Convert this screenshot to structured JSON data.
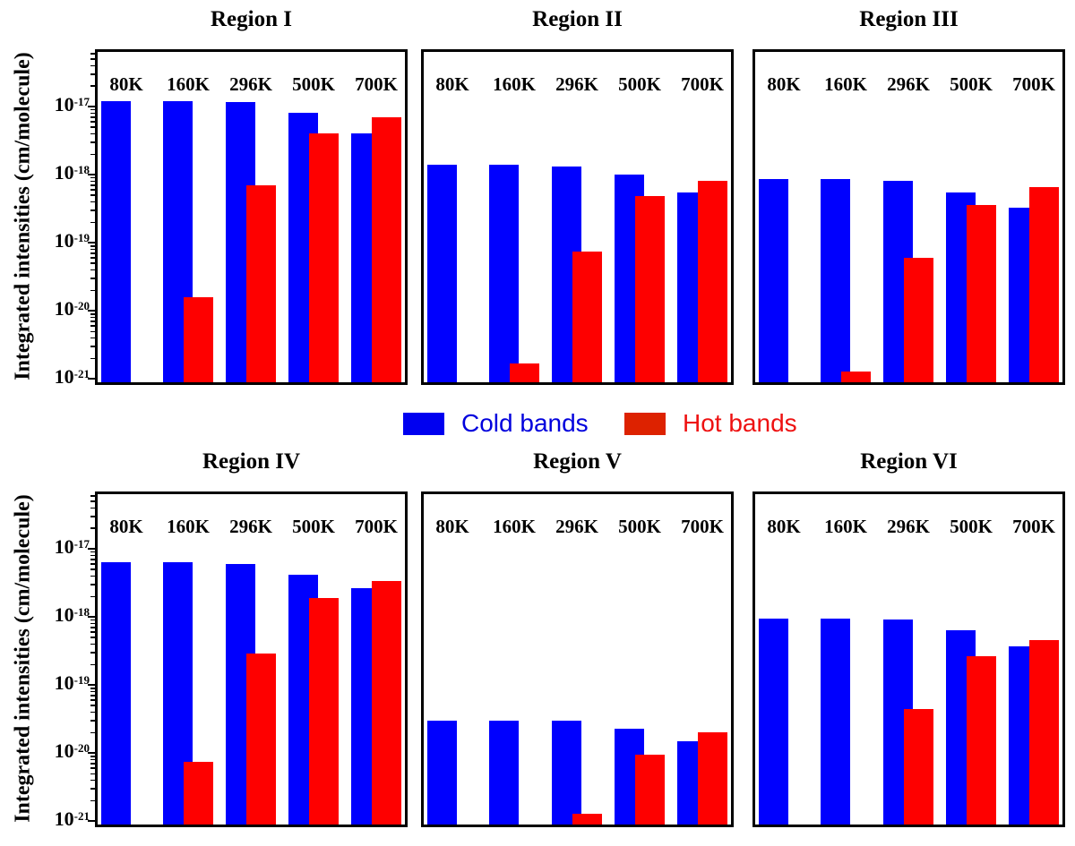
{
  "figure": {
    "ylabel": "Integrated intensities (cm/molecule)",
    "legend": {
      "cold": {
        "label": "Cold bands",
        "swatch_color": "#0000f0",
        "text_color": "#0000dd"
      },
      "hot": {
        "label": "Hot bands",
        "swatch_color": "#dd2200",
        "text_color": "#ee1111"
      }
    },
    "colors": {
      "cold_bar": "#0000fe",
      "hot_bar": "#fe0000",
      "frame": "#000000"
    }
  },
  "chart_data": {
    "type": "bar",
    "yscale": "log",
    "ylabel": "Integrated intensities (cm/molecule)",
    "categories": [
      "80K",
      "160K",
      "296K",
      "500K",
      "700K"
    ],
    "ytick_exponents": [
      -17,
      -18,
      -19,
      -20,
      -21
    ],
    "ylim_exponents": [
      -21.05,
      -16.2
    ],
    "grid": false,
    "legend": [
      "Cold bands",
      "Hot bands"
    ],
    "legend_position": "middle-center",
    "panels": [
      {
        "title": "Region I",
        "series": [
          {
            "name": "Cold bands",
            "values": [
              1.2e-17,
              1.2e-17,
              1.15e-17,
              8e-18,
              4e-18
            ]
          },
          {
            "name": "Hot bands",
            "values": [
              null,
              1.6e-20,
              7e-19,
              4e-18,
              7e-18
            ]
          }
        ]
      },
      {
        "title": "Region II",
        "series": [
          {
            "name": "Cold bands",
            "values": [
              1.4e-18,
              1.4e-18,
              1.3e-18,
              1e-18,
              5.5e-19
            ]
          },
          {
            "name": "Hot bands",
            "values": [
              null,
              1.7e-21,
              7.5e-20,
              4.8e-19,
              8e-19
            ]
          }
        ]
      },
      {
        "title": "Region III",
        "series": [
          {
            "name": "Cold bands",
            "values": [
              8.5e-19,
              8.5e-19,
              8.2e-19,
              5.5e-19,
              3.3e-19
            ]
          },
          {
            "name": "Hot bands",
            "values": [
              null,
              1.3e-21,
              6e-20,
              3.6e-19,
              6.6e-19
            ]
          }
        ]
      },
      {
        "title": "Region IV",
        "series": [
          {
            "name": "Cold bands",
            "values": [
              6.3e-18,
              6.3e-18,
              6e-18,
              4.2e-18,
              2.6e-18
            ]
          },
          {
            "name": "Hot bands",
            "values": [
              null,
              7.5e-21,
              2.9e-19,
              1.9e-18,
              3.4e-18
            ]
          }
        ]
      },
      {
        "title": "Region V",
        "series": [
          {
            "name": "Cold bands",
            "values": [
              3e-20,
              3e-20,
              3e-20,
              2.3e-20,
              1.5e-20
            ]
          },
          {
            "name": "Hot bands",
            "values": [
              null,
              null,
              1.3e-21,
              9.5e-21,
              2e-20
            ]
          }
        ]
      },
      {
        "title": "Region VI",
        "series": [
          {
            "name": "Cold bands",
            "values": [
              9.5e-19,
              9.5e-19,
              9e-19,
              6.3e-19,
              3.7e-19
            ]
          },
          {
            "name": "Hot bands",
            "values": [
              null,
              null,
              4.4e-20,
              2.6e-19,
              4.5e-19
            ]
          }
        ]
      }
    ]
  }
}
